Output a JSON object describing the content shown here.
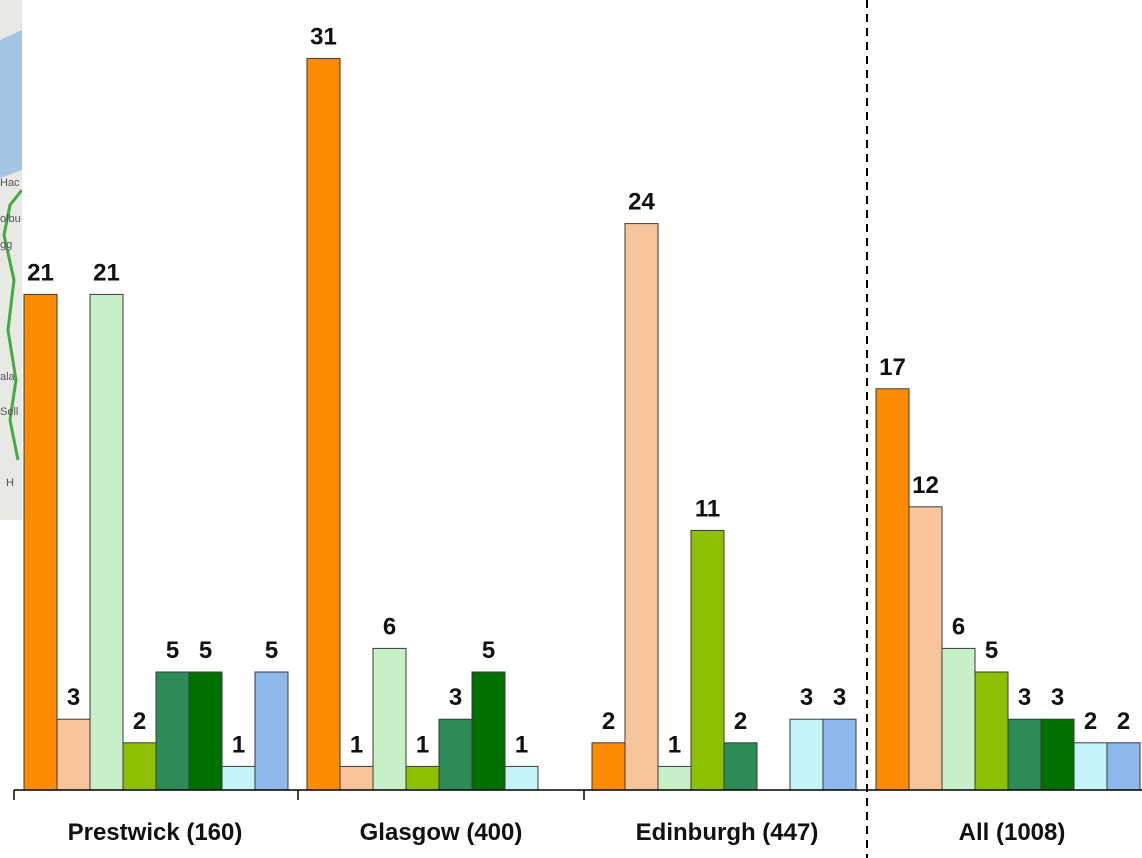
{
  "colors": {
    "orange": "#FF8C00",
    "peach": "#F8C49C",
    "mint": "#C8F0C8",
    "yellow_green": "#8DC000",
    "sea_green": "#2E8B57",
    "dark_green": "#007000",
    "pale_cyan": "#C4F4F8",
    "sky_blue": "#8CB8EC",
    "map_bg": "#E8E8E4",
    "map_water": "#A4C4E4",
    "map_road": "#44AA44"
  },
  "chart_data": {
    "type": "bar",
    "title": "",
    "xlabel": "",
    "ylabel": "",
    "ylim": [
      0,
      32
    ],
    "grid": false,
    "legend": "none",
    "categories": [
      "Prestwick (160)",
      "Glasgow (400)",
      "Edinburgh (447)",
      "All (1008)"
    ],
    "series_colors": [
      "#FF8C00",
      "#F8C49C",
      "#C8F0C8",
      "#8DC000",
      "#2E8B57",
      "#007000",
      "#C4F4F8",
      "#8CB8EC"
    ],
    "series": [
      {
        "values": [
          21,
          31,
          2,
          17
        ]
      },
      {
        "values": [
          3,
          1,
          24,
          12
        ]
      },
      {
        "values": [
          21,
          6,
          1,
          6
        ]
      },
      {
        "values": [
          2,
          1,
          11,
          5
        ]
      },
      {
        "values": [
          5,
          3,
          2,
          3
        ]
      },
      {
        "values": [
          5,
          5,
          null,
          3
        ]
      },
      {
        "values": [
          1,
          1,
          3,
          2
        ]
      },
      {
        "values": [
          5,
          null,
          3,
          2
        ]
      }
    ],
    "annotations": [
      "dashed vertical divider between Edinburgh (447) and All (1008)"
    ]
  }
}
